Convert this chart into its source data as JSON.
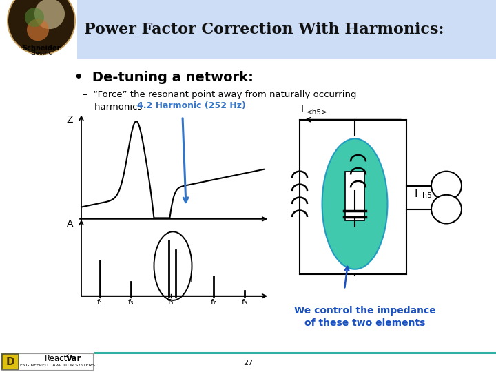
{
  "title": "Power Factor Correction With Harmonics:",
  "bullet": "De-tuning a network:",
  "sub_bullet": "–  “Force” the resonant point away from naturally occurring\n    harmonics",
  "harmonic_label": "4.2 Harmonic (252 Hz)",
  "harmonic_label_color": "#3575c8",
  "we_control_text": "We control the impedance\nof these two elements",
  "we_control_color": "#1a50c0",
  "page_num": "27",
  "bg_color": "#ffffff",
  "header_bg": "#ccddf5",
  "footer_line_color": "#30b0a0",
  "freq_labels": [
    "f₁",
    "f₃",
    "f₅",
    "f₇",
    "f₉"
  ],
  "circuit_teal": "#20c0a0",
  "circuit_teal_edge": "#1090c0",
  "logo_yellow": "#ddc010",
  "header_left_bg": "#e8e8e8",
  "title_color": "#111111",
  "bullet_color": "#000000",
  "sub_color": "#000000"
}
